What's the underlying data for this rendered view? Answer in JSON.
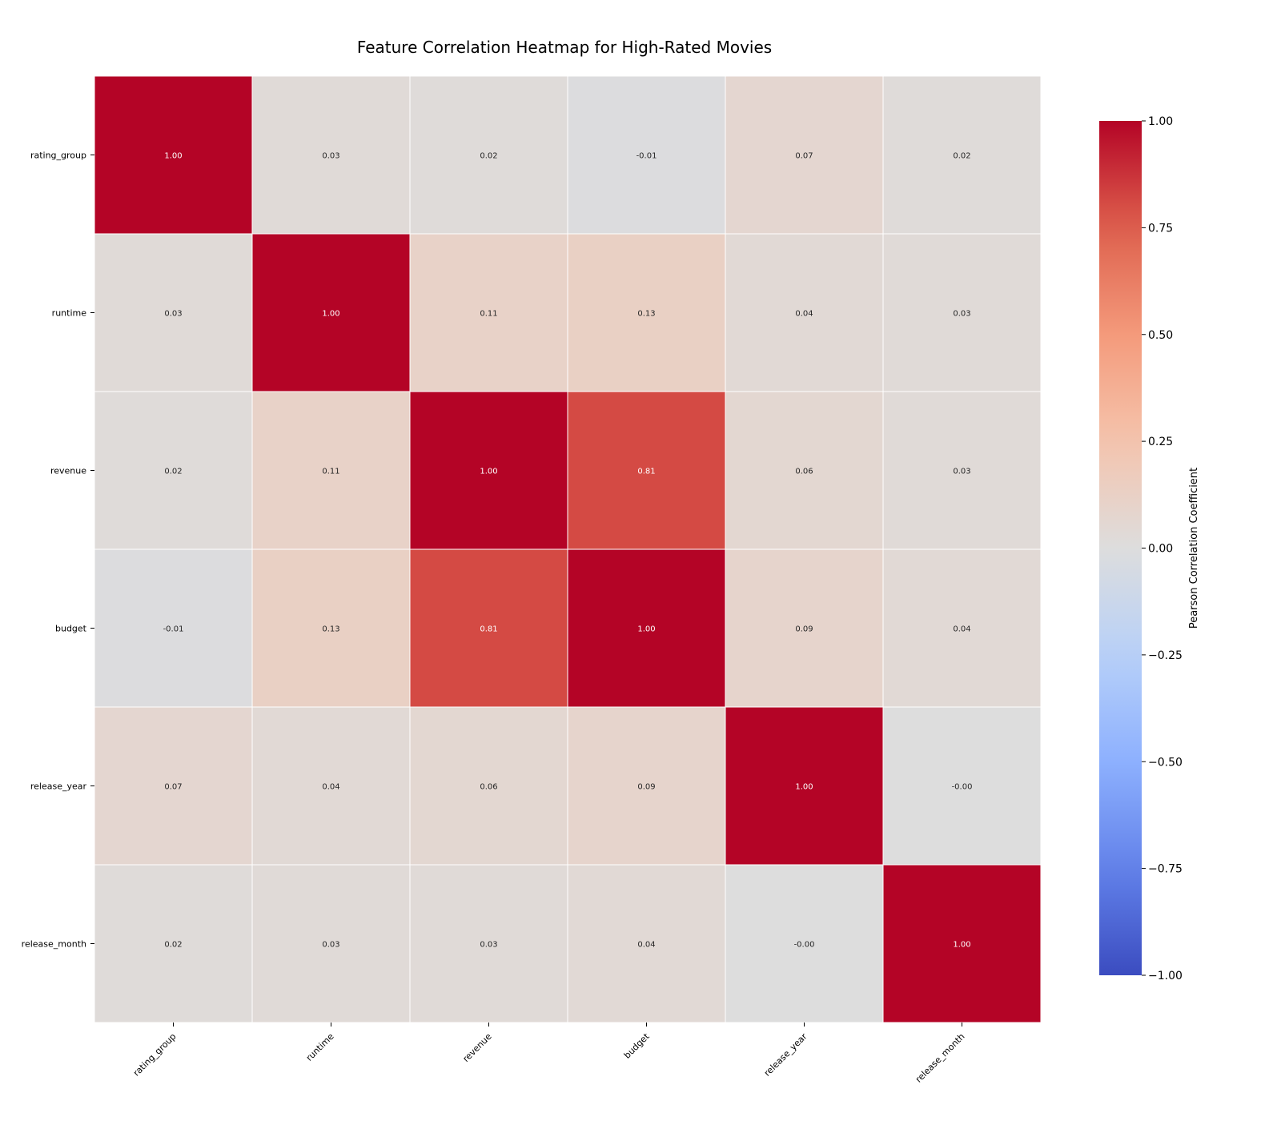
{
  "chart_data": {
    "type": "heatmap",
    "title": "Feature Correlation Heatmap for High-Rated Movies",
    "rows": [
      "rating_group",
      "runtime",
      "revenue",
      "budget",
      "release_year",
      "release_month"
    ],
    "columns": [
      "rating_group",
      "runtime",
      "revenue",
      "budget",
      "release_year",
      "release_month"
    ],
    "values": [
      [
        1.0,
        0.03,
        0.02,
        -0.01,
        0.07,
        0.02
      ],
      [
        0.03,
        1.0,
        0.11,
        0.13,
        0.04,
        0.03
      ],
      [
        0.02,
        0.11,
        1.0,
        0.81,
        0.06,
        0.03
      ],
      [
        -0.01,
        0.13,
        0.81,
        1.0,
        0.09,
        0.04
      ],
      [
        0.07,
        0.04,
        0.06,
        0.09,
        1.0,
        -0.0
      ],
      [
        0.02,
        0.03,
        0.03,
        0.04,
        -0.0,
        1.0
      ]
    ],
    "cell_labels": [
      [
        "1.00",
        "0.03",
        "0.02",
        "-0.01",
        "0.07",
        "0.02"
      ],
      [
        "0.03",
        "1.00",
        "0.11",
        "0.13",
        "0.04",
        "0.03"
      ],
      [
        "0.02",
        "0.11",
        "1.00",
        "0.81",
        "0.06",
        "0.03"
      ],
      [
        "-0.01",
        "0.13",
        "0.81",
        "1.00",
        "0.09",
        "0.04"
      ],
      [
        "0.07",
        "0.04",
        "0.06",
        "0.09",
        "1.00",
        "-0.00"
      ],
      [
        "0.02",
        "0.03",
        "0.03",
        "0.04",
        "-0.00",
        "1.00"
      ]
    ],
    "colormap": "coolwarm",
    "vmin": -1.0,
    "vmax": 1.0,
    "colorbar": {
      "label": "Pearson Correlation Coefficient",
      "ticks": [
        1.0,
        0.75,
        0.5,
        0.25,
        0.0,
        -0.25,
        -0.5,
        -0.75,
        -1.0
      ],
      "tick_labels": [
        "1.00",
        "0.75",
        "0.50",
        "0.25",
        "0.00",
        "−0.25",
        "−0.50",
        "−0.75",
        "−1.00"
      ],
      "placement": "right"
    },
    "colors": {
      "high": "#b40426",
      "mid": "#dddddd",
      "low": "#3b4cc0",
      "cell_border": "#ffffff"
    }
  }
}
